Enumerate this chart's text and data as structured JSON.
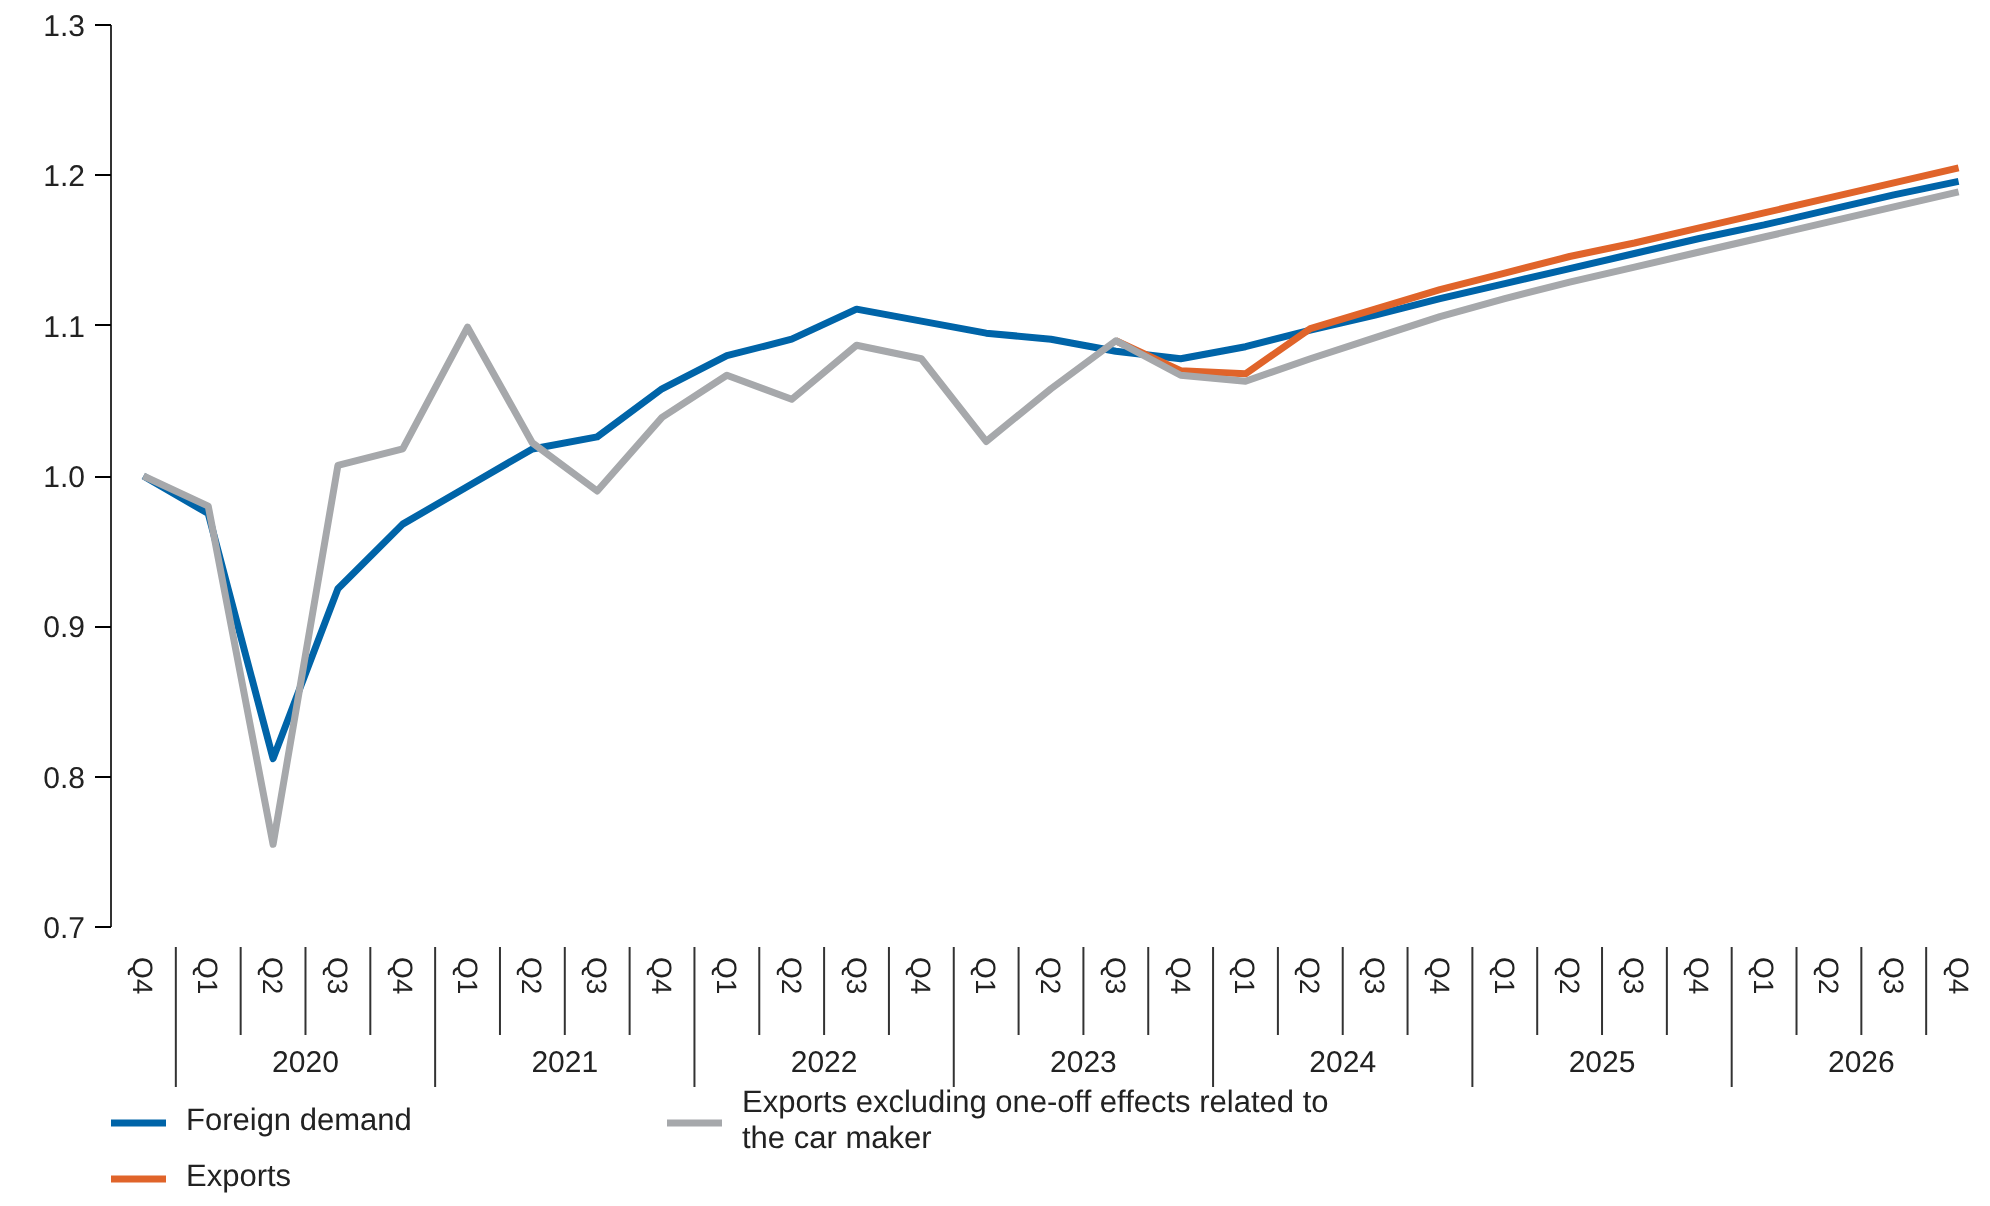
{
  "chart_data": {
    "type": "line",
    "categories": [
      "Q4",
      "Q1",
      "Q2",
      "Q3",
      "Q4",
      "Q1",
      "Q2",
      "Q3",
      "Q4",
      "Q1",
      "Q2",
      "Q3",
      "Q4",
      "Q1",
      "Q2",
      "Q3",
      "Q4",
      "Q1",
      "Q2",
      "Q3",
      "Q4",
      "Q1",
      "Q2",
      "Q3",
      "Q4",
      "Q1",
      "Q2",
      "Q3",
      "Q4"
    ],
    "annotations": [
      "2020",
      "2021",
      "2022",
      "2023",
      "2024",
      "2025",
      "2026"
    ],
    "series": [
      {
        "name": "Foreign demand",
        "color": "#0064a8",
        "values": [
          1.0,
          0.975,
          0.812,
          0.925,
          0.968,
          0.993,
          1.018,
          1.026,
          1.058,
          1.08,
          1.091,
          1.111,
          1.103,
          1.095,
          1.091,
          1.083,
          1.078,
          1.086,
          1.097,
          1.107,
          1.118,
          1.128,
          1.138,
          1.148,
          1.158,
          1.167,
          1.177,
          1.187,
          1.196
        ]
      },
      {
        "name": "Exports",
        "color": "#e0642a",
        "values": [
          null,
          null,
          null,
          null,
          null,
          null,
          null,
          null,
          null,
          null,
          null,
          null,
          null,
          null,
          null,
          1.09,
          1.07,
          1.068,
          1.098,
          1.111,
          1.124,
          1.135,
          1.146,
          1.155,
          1.165,
          1.175,
          1.185,
          1.195,
          1.205
        ]
      },
      {
        "name": "Exports excluding one-off effects related to the car maker",
        "color": "#a6a8ab",
        "values": [
          1.0,
          0.98,
          0.755,
          1.007,
          1.018,
          1.099,
          1.022,
          0.99,
          1.039,
          1.067,
          1.051,
          1.087,
          1.078,
          1.023,
          1.058,
          1.09,
          1.067,
          1.063,
          1.078,
          1.092,
          1.106,
          1.118,
          1.129,
          1.139,
          1.149,
          1.159,
          1.169,
          1.179,
          1.189
        ]
      }
    ],
    "ylim": [
      0.7,
      1.3
    ],
    "yticks": [
      0.7,
      0.8,
      0.9,
      {
        "value": 1,
        "label": "1.0"
      },
      1.1,
      1.2,
      1.3
    ],
    "grid": false,
    "legend": "bottom left",
    "marker": "none",
    "line_style": "solid"
  }
}
